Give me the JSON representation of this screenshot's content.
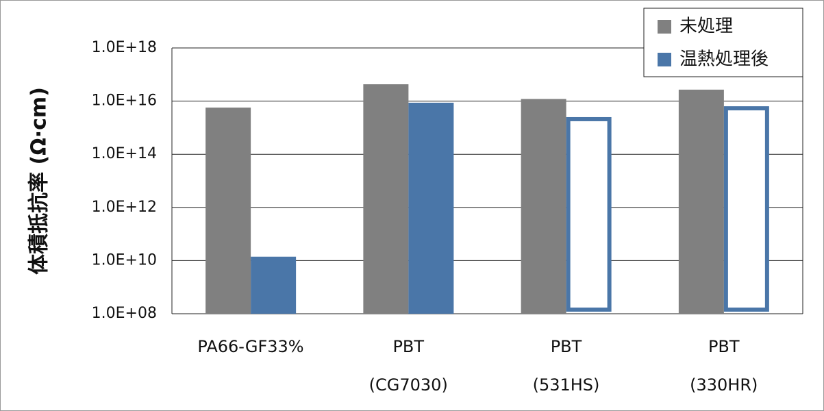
{
  "chart_data": {
    "type": "bar",
    "y_label": "体積抵抗率 (Ω·cm)",
    "categories": [
      "PA66-GF33%",
      "PBT\n(CG7030)",
      "PBT\n(531HS)",
      "PBT\n(330HR)"
    ],
    "series": [
      {
        "name": "未処理",
        "color": "#808080",
        "values": [
          5700000000000000.0,
          4.3e+16,
          1.2e+16,
          2.7e+16
        ]
      },
      {
        "name": "温熱処理後",
        "color": "#4a76a8",
        "values": [
          14000000000.0,
          8700000000000000.0,
          2500000000000000.0,
          6400000000000000.0
        ],
        "outline_only": [
          false,
          false,
          true,
          true
        ]
      }
    ],
    "log_scale": true,
    "ylim": [
      100000000.0,
      1e+18
    ],
    "yticks": [
      {
        "value": 100000000.0,
        "label": "1.0E+08"
      },
      {
        "value": 10000000000.0,
        "label": "1.0E+10"
      },
      {
        "value": 1000000000000.0,
        "label": "1.0E+12"
      },
      {
        "value": 100000000000000.0,
        "label": "1.0E+14"
      },
      {
        "value": 1e+16,
        "label": "1.0E+16"
      },
      {
        "value": 1e+18,
        "label": "1.0E+18"
      }
    ],
    "grid": true,
    "legend": "top-right"
  }
}
